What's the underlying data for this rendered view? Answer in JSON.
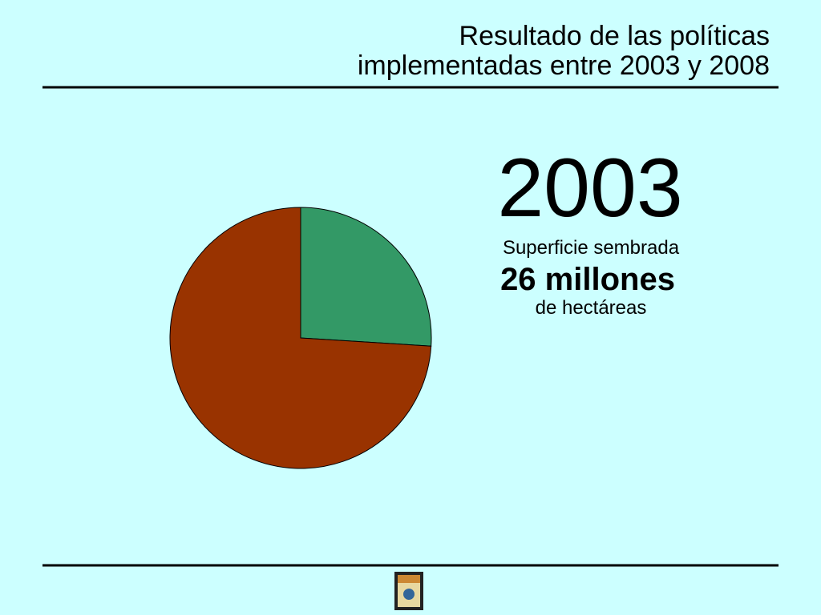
{
  "chart_data": {
    "type": "pie",
    "title": [
      "Resultado de las políticas",
      "implementadas entre 2003 y 2008"
    ],
    "annotations": [
      "2003",
      "Superficie sembrada",
      "26 millones",
      "de hectáreas"
    ],
    "values": [
      26,
      74
    ],
    "colors": [
      "#339966",
      "#993300"
    ]
  }
}
